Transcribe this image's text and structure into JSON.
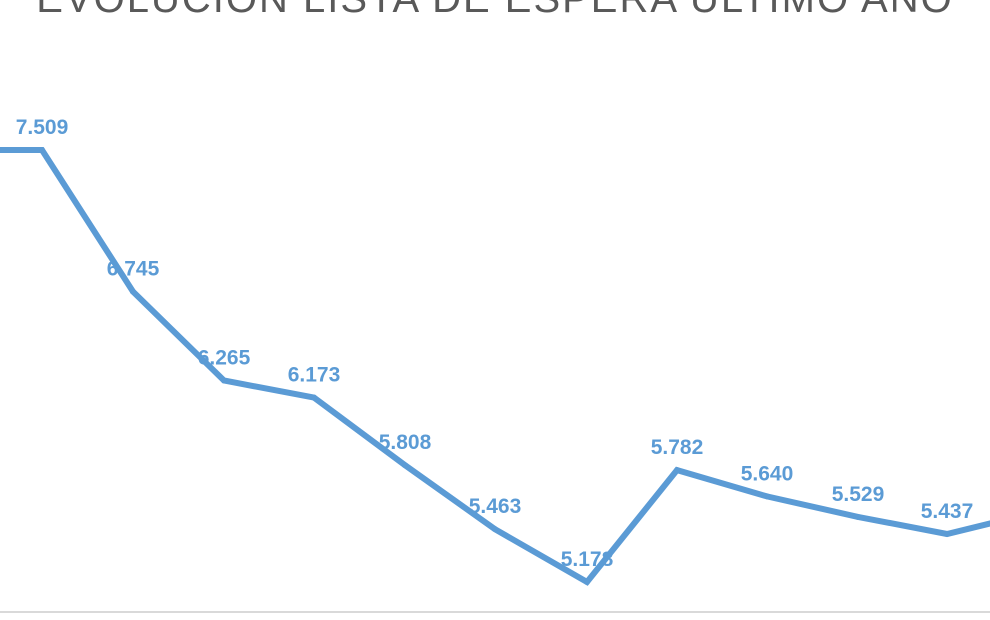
{
  "chart_data": {
    "type": "line",
    "title": "EVOLUCIÓN LISTA DE ESPERA ÚLTIMO AÑO",
    "xlabel": "",
    "ylabel": "",
    "series": [
      {
        "values": [
          7.509,
          7.509,
          6.745,
          6.265,
          6.173,
          5.808,
          5.463,
          5.178,
          5.782,
          5.64,
          5.529,
          5.437,
          5.5
        ],
        "labels": [
          "",
          "7.509",
          "6.745",
          "6.265",
          "6.173",
          "5.808",
          "5.463",
          "5.178",
          "5.782",
          "5.640",
          "5.529",
          "5.437",
          ""
        ]
      }
    ],
    "ylim": [
      4.85,
      8.05
    ],
    "grid": false,
    "legend": "none",
    "colors": {
      "line": "#5b9bd5",
      "title": "#595959",
      "baseline": "#d9d9d9"
    }
  }
}
